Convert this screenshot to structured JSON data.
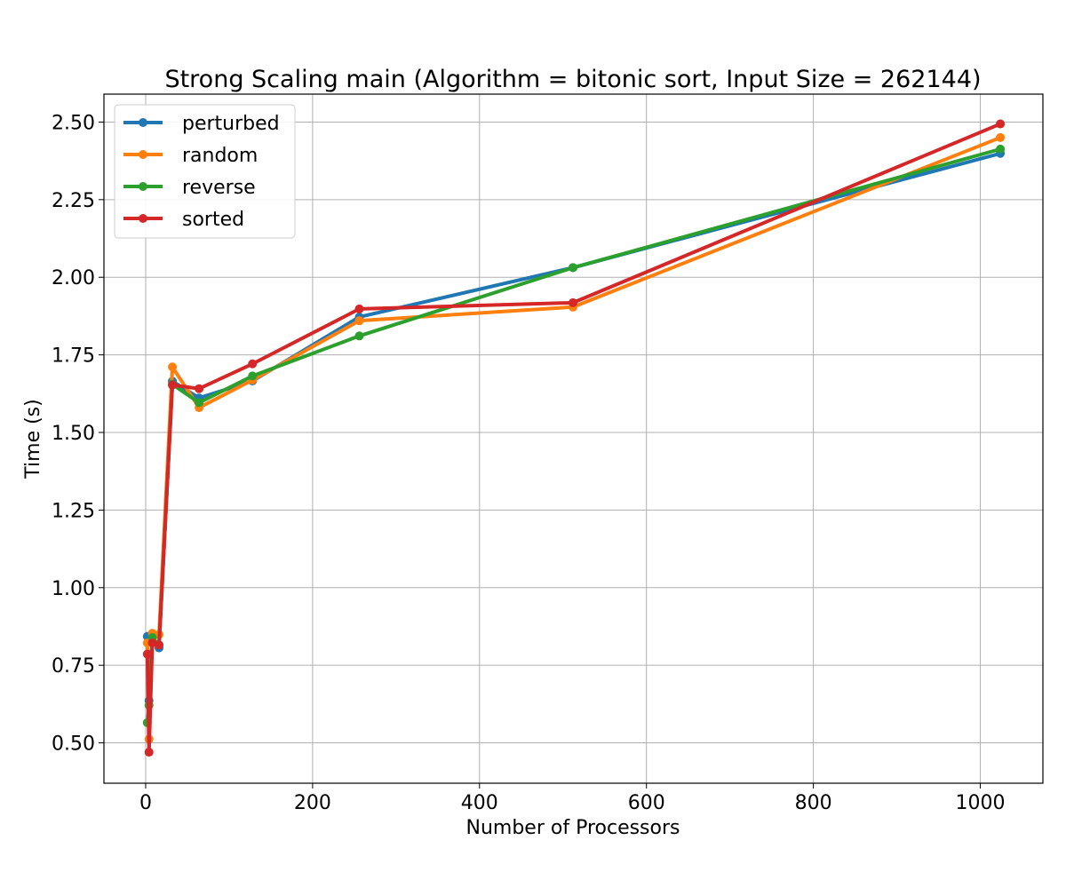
{
  "chart_data": {
    "type": "line",
    "title": "Strong Scaling main (Algorithm = bitonic sort, Input Size = 262144)",
    "xlabel": "Number of Processors",
    "ylabel": "Time (s)",
    "xlim": [
      -50,
      1075
    ],
    "ylim": [
      0.37,
      2.59
    ],
    "xticks": [
      0,
      200,
      400,
      600,
      800,
      1000
    ],
    "xtick_labels": [
      "0",
      "200",
      "400",
      "600",
      "800",
      "1000"
    ],
    "yticks": [
      0.5,
      0.75,
      1.0,
      1.25,
      1.5,
      1.75,
      2.0,
      2.25,
      2.5
    ],
    "ytick_labels": [
      "0.50",
      "0.75",
      "1.00",
      "1.25",
      "1.50",
      "1.75",
      "2.00",
      "2.25",
      "2.50"
    ],
    "grid": true,
    "legend_position": "top-left",
    "x": [
      2,
      4,
      8,
      16,
      32,
      64,
      128,
      256,
      512,
      1024
    ],
    "series": [
      {
        "name": "perturbed",
        "color": "#1f77b4",
        "values": [
          0.843,
          0.636,
          0.837,
          0.806,
          1.665,
          1.611,
          1.666,
          1.872,
          2.031,
          2.399
        ]
      },
      {
        "name": "random",
        "color": "#ff7f0e",
        "values": [
          0.822,
          0.512,
          0.853,
          0.849,
          1.711,
          1.58,
          1.669,
          1.86,
          1.904,
          2.45
        ]
      },
      {
        "name": "reverse",
        "color": "#2ca02c",
        "values": [
          0.565,
          0.621,
          0.839,
          0.816,
          1.655,
          1.596,
          1.682,
          1.811,
          2.031,
          2.413
        ]
      },
      {
        "name": "sorted",
        "color": "#d62728",
        "values": [
          0.786,
          0.47,
          0.822,
          0.815,
          1.653,
          1.641,
          1.721,
          1.898,
          1.918,
          2.494
        ]
      }
    ]
  }
}
